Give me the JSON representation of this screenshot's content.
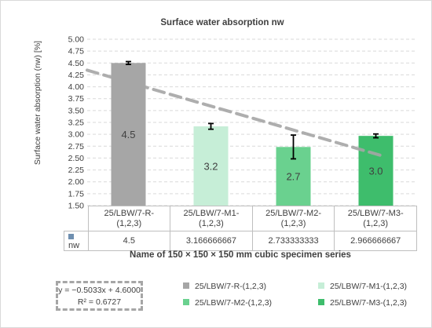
{
  "chart_data": {
    "type": "bar",
    "title": "Surface water absorption nw",
    "ylabel": "Surface water absorption (nw) [%]",
    "xlabel": "Name of 150 × 150 × 150 mm cubic specimen series",
    "ylim": [
      1.5,
      5.0
    ],
    "yticks": [
      "1.50",
      "1.75",
      "2.00",
      "2.25",
      "2.50",
      "2.75",
      "3.00",
      "3.25",
      "3.50",
      "3.75",
      "4.00",
      "4.25",
      "4.50",
      "4.75",
      "5.00"
    ],
    "grid": true,
    "categories": [
      "25/LBW/7-R-(1,2,3)",
      "25/LBW/7-M1-(1,2,3)",
      "25/LBW/7-M2-(1,2,3)",
      "25/LBW/7-M3-(1,2,3)"
    ],
    "category_lines": [
      [
        "25/LBW/7-R-",
        "(1,2,3)"
      ],
      [
        "25/LBW/7-M1-",
        "(1,2,3)"
      ],
      [
        "25/LBW/7-M2-",
        "(1,2,3)"
      ],
      [
        "25/LBW/7-M3-",
        "(1,2,3)"
      ]
    ],
    "series": [
      {
        "name": "nw",
        "values": [
          4.5,
          3.166666667,
          2.733333333,
          2.966666667
        ],
        "value_labels": [
          "4.5",
          "3.2",
          "2.7",
          "3.0"
        ],
        "table_values": [
          "4.5",
          "3.166666667",
          "2.733333333",
          "2.966666667"
        ],
        "errors": [
          0.03,
          0.06,
          0.25,
          0.04
        ],
        "colors": [
          "#a6a6a6",
          "#c6eed7",
          "#6ad18f",
          "#3ebd6c"
        ]
      }
    ],
    "trendline": {
      "type": "linear",
      "slope": -0.5033,
      "intercept": 4.6,
      "equation": "y = −0.5033x + 4.6000",
      "r2": "R² = 0.6727",
      "color": "#a6a6a6"
    },
    "legend": {
      "placement": "bottom",
      "entries": [
        "25/LBW/7-R-(1,2,3)",
        "25/LBW/7-M1-(1,2,3)",
        "25/LBW/7-M2-(1,2,3)",
        "25/LBW/7-M3-(1,2,3)"
      ]
    },
    "table": {
      "row_label": "nw",
      "key_color": "#6f8fb0"
    }
  }
}
